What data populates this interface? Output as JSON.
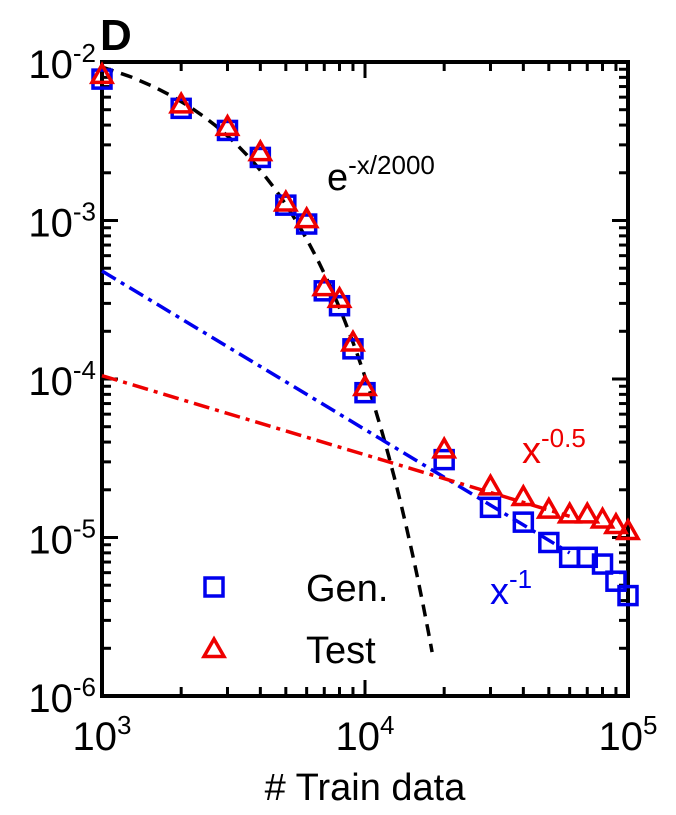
{
  "panel_label": "D",
  "chart_data": {
    "type": "scatter",
    "xlabel": "# Train data",
    "ylabel": "",
    "x_scale": "log",
    "y_scale": "log",
    "xlim": [
      1000,
      100000
    ],
    "ylim": [
      1e-06,
      0.01
    ],
    "x_ticks": [
      {
        "value": 1000,
        "base": "10",
        "exp": "3"
      },
      {
        "value": 10000,
        "base": "10",
        "exp": "4"
      },
      {
        "value": 100000,
        "base": "10",
        "exp": "5"
      }
    ],
    "y_ticks": [
      {
        "value": 0.01,
        "base": "10",
        "exp": "-2"
      },
      {
        "value": 0.001,
        "base": "10",
        "exp": "-3"
      },
      {
        "value": 0.0001,
        "base": "10",
        "exp": "-4"
      },
      {
        "value": 1e-05,
        "base": "10",
        "exp": "-5"
      },
      {
        "value": 1e-06,
        "base": "10",
        "exp": "-6"
      }
    ],
    "grid": false,
    "legend_position": "bottom-left",
    "series": [
      {
        "name": "Gen.",
        "marker": "square",
        "color": "#0000ee",
        "x": [
          1000,
          2000,
          3000,
          4000,
          5000,
          6000,
          7000,
          8000,
          9000,
          10000,
          20000,
          30000,
          40000,
          50000,
          60000,
          70000,
          80000,
          90000,
          100000
        ],
        "y": [
          0.0078,
          0.0051,
          0.0037,
          0.0025,
          0.00125,
          0.00095,
          0.00036,
          0.00029,
          0.000155,
          8.2e-05,
          3.1e-05,
          1.55e-05,
          1.25e-05,
          9.3e-06,
          7.5e-06,
          7.5e-06,
          6.8e-06,
          5.3e-06,
          4.3e-06
        ]
      },
      {
        "name": "Test",
        "marker": "triangle",
        "color": "#ee0000",
        "x": [
          1000,
          2000,
          3000,
          4000,
          5000,
          6000,
          7000,
          8000,
          9000,
          10000,
          20000,
          30000,
          40000,
          50000,
          60000,
          70000,
          80000,
          90000,
          100000
        ],
        "y": [
          0.0083,
          0.0054,
          0.0039,
          0.0027,
          0.0013,
          0.00102,
          0.00038,
          0.00032,
          0.00017,
          8.9e-05,
          3.6e-05,
          2.1e-05,
          1.8e-05,
          1.5e-05,
          1.4e-05,
          1.4e-05,
          1.3e-05,
          1.2e-05,
          1.1e-05
        ]
      }
    ],
    "fit_lines": [
      {
        "label_base": "e",
        "label_exp": "-x/2000",
        "style": "dashed",
        "color": "#000000",
        "formula": "exp",
        "points": [
          [
            1000,
            0.0093
          ],
          [
            18000,
            1.1e-06
          ]
        ]
      },
      {
        "label_base": "x",
        "label_exp": "-1",
        "style": "dash-dot",
        "color": "#0000ee",
        "formula": "power",
        "points": [
          [
            1000,
            0.00048
          ],
          [
            60000,
            8e-06
          ]
        ]
      },
      {
        "label_base": "x",
        "label_exp": "-0.5",
        "style": "dash-dot",
        "color": "#ee0000",
        "formula": "power",
        "points": [
          [
            1000,
            0.000105
          ],
          [
            60000,
            1.36e-05
          ]
        ]
      }
    ]
  }
}
